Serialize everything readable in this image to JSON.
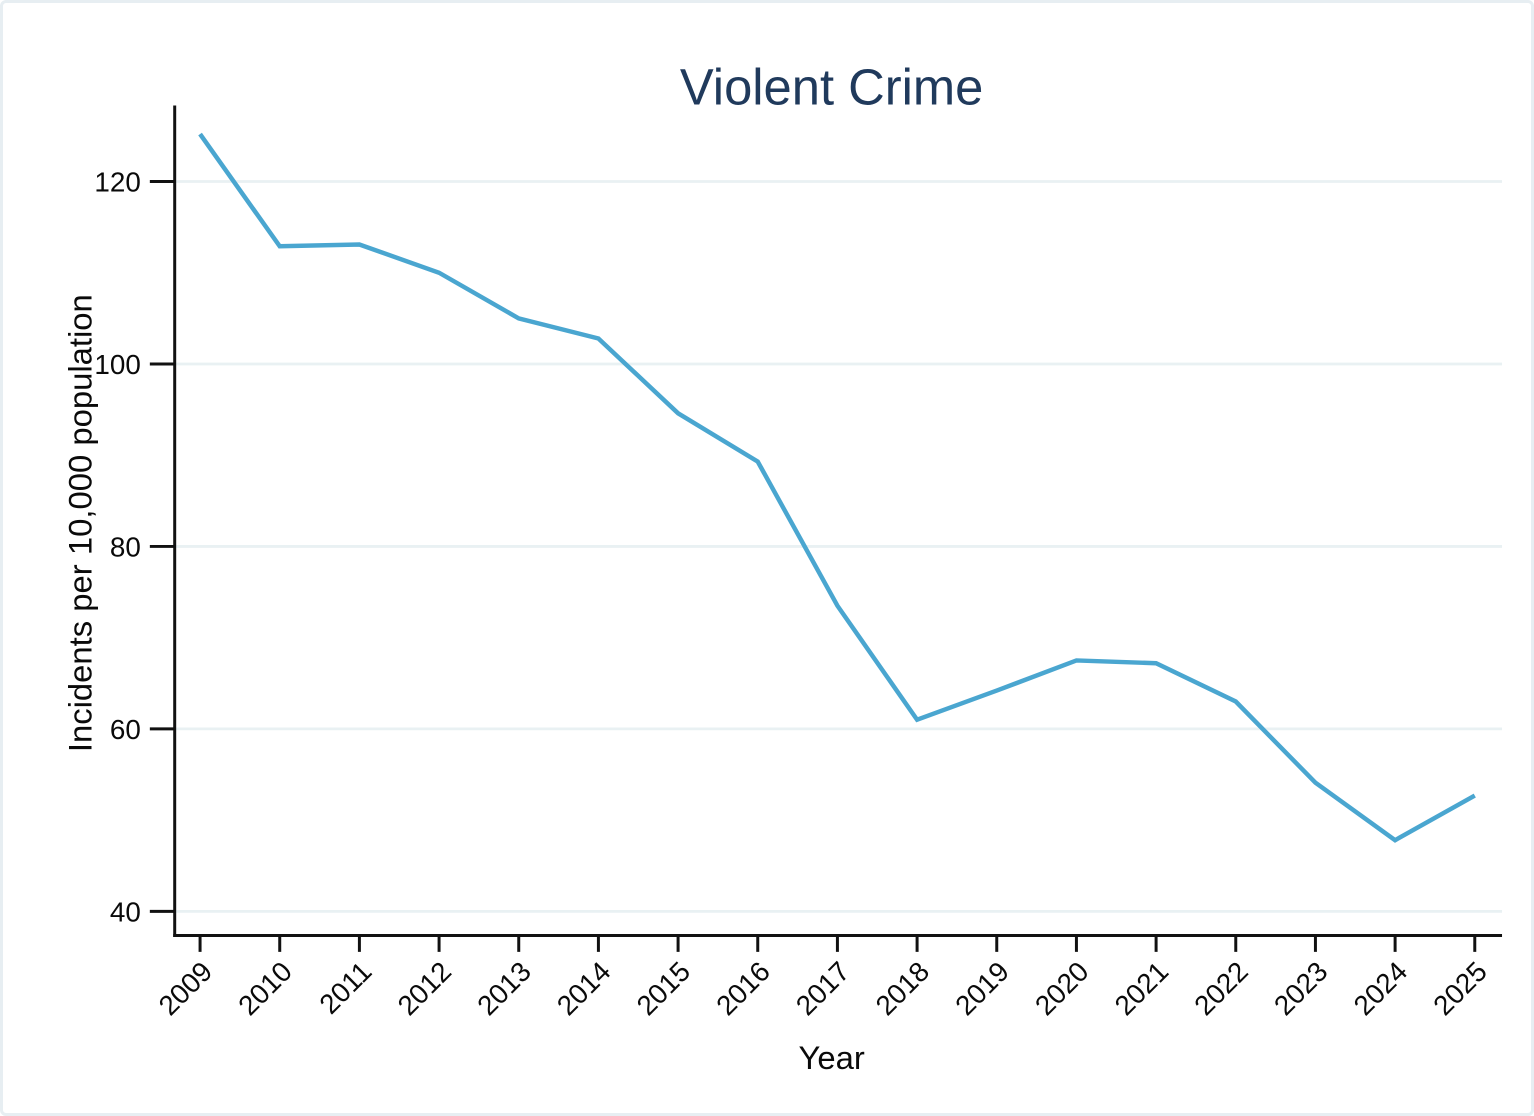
{
  "chart_data": {
    "type": "line",
    "title": "Violent Crime",
    "xlabel": "Year",
    "ylabel": "Incidents per 10,000 population",
    "x": [
      2009,
      2010,
      2011,
      2012,
      2013,
      2014,
      2015,
      2016,
      2017,
      2018,
      2019,
      2020,
      2021,
      2022,
      2023,
      2024,
      2025
    ],
    "series": [
      {
        "values": [
          125.2,
          112.9,
          113.1,
          110.0,
          105.0,
          102.8,
          94.6,
          89.3,
          73.5,
          61.0,
          64.2,
          67.5,
          67.2,
          63.0,
          54.1,
          47.8,
          52.7
        ]
      }
    ],
    "yticks": [
      40,
      60,
      80,
      100,
      120
    ],
    "ylim": [
      36.5,
      128.5
    ],
    "xtick_angle_deg": 45,
    "grid": "horizontal",
    "legend": "none",
    "colors": {
      "line": "#4aa6d0",
      "title": "#203a5c",
      "grid": "#e9f1f3",
      "axis": "#111111",
      "text": "#0a0a0a",
      "frame_border": "#e7eef2",
      "background": "#ffffff"
    }
  }
}
